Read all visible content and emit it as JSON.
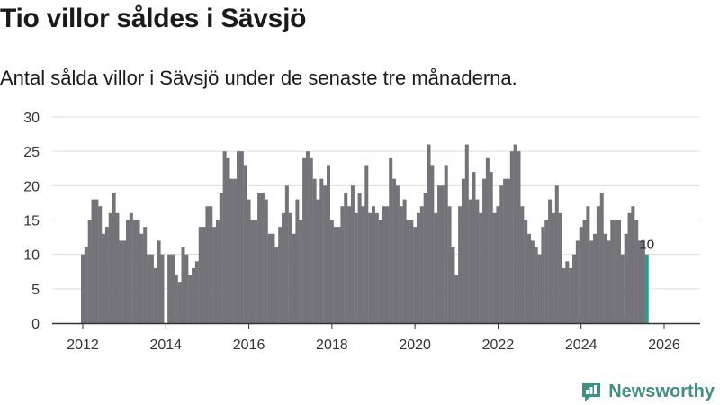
{
  "title": "Tio villor såldes i Sävsjö",
  "subtitle": "Antal sålda villor i Sävsjö under de senaste tre månaderna.",
  "brand": {
    "name": "Newsworthy"
  },
  "colors": {
    "bar": "#74737a",
    "highlight": "#2a9d8f",
    "grid": "#dddddd",
    "brand": "#3f8f83"
  },
  "chart_data": {
    "type": "bar",
    "title": "Tio villor såldes i Sävsjö",
    "xlabel": "",
    "ylabel": "",
    "ylim": [
      0,
      30
    ],
    "yticks": [
      0,
      5,
      10,
      15,
      20,
      25,
      30
    ],
    "xlim": [
      2012,
      2026.2
    ],
    "xticks": [
      2012,
      2014,
      2016,
      2018,
      2020,
      2022,
      2024,
      2026
    ],
    "x_start": 2012.0,
    "step": 0.08333,
    "highlight_last": true,
    "last_label": "10",
    "values": [
      10,
      11,
      15,
      18,
      18,
      17,
      13,
      14,
      16,
      19,
      16,
      12,
      12,
      15,
      16,
      15,
      15,
      13,
      14,
      10,
      10,
      8,
      12,
      10,
      0,
      10,
      10,
      7,
      6,
      11,
      10,
      7,
      8,
      9,
      14,
      14,
      17,
      17,
      14,
      15,
      19,
      25,
      24,
      21,
      21,
      25,
      25,
      23,
      18,
      15,
      15,
      19,
      19,
      18,
      13,
      13,
      11,
      14,
      16,
      20,
      16,
      13,
      18,
      15,
      24,
      25,
      24,
      21,
      18,
      21,
      20,
      23,
      15,
      14,
      14,
      17,
      19,
      17,
      20,
      16,
      19,
      17,
      23,
      16,
      17,
      16,
      15,
      17,
      17,
      24,
      21,
      20,
      17,
      18,
      15,
      15,
      14,
      16,
      17,
      19,
      26,
      23,
      16,
      20,
      20,
      23,
      17,
      11,
      7,
      17,
      21,
      26,
      18,
      22,
      18,
      16,
      21,
      24,
      22,
      16,
      17,
      20,
      21,
      21,
      25,
      26,
      25,
      17,
      15,
      13,
      12,
      11,
      10,
      14,
      15,
      18,
      16,
      20,
      16,
      8,
      9,
      8,
      10,
      12,
      14,
      15,
      17,
      12,
      13,
      17,
      19,
      13,
      12,
      15,
      15,
      15,
      10,
      13,
      16,
      17,
      15,
      12,
      12,
      10
    ]
  }
}
